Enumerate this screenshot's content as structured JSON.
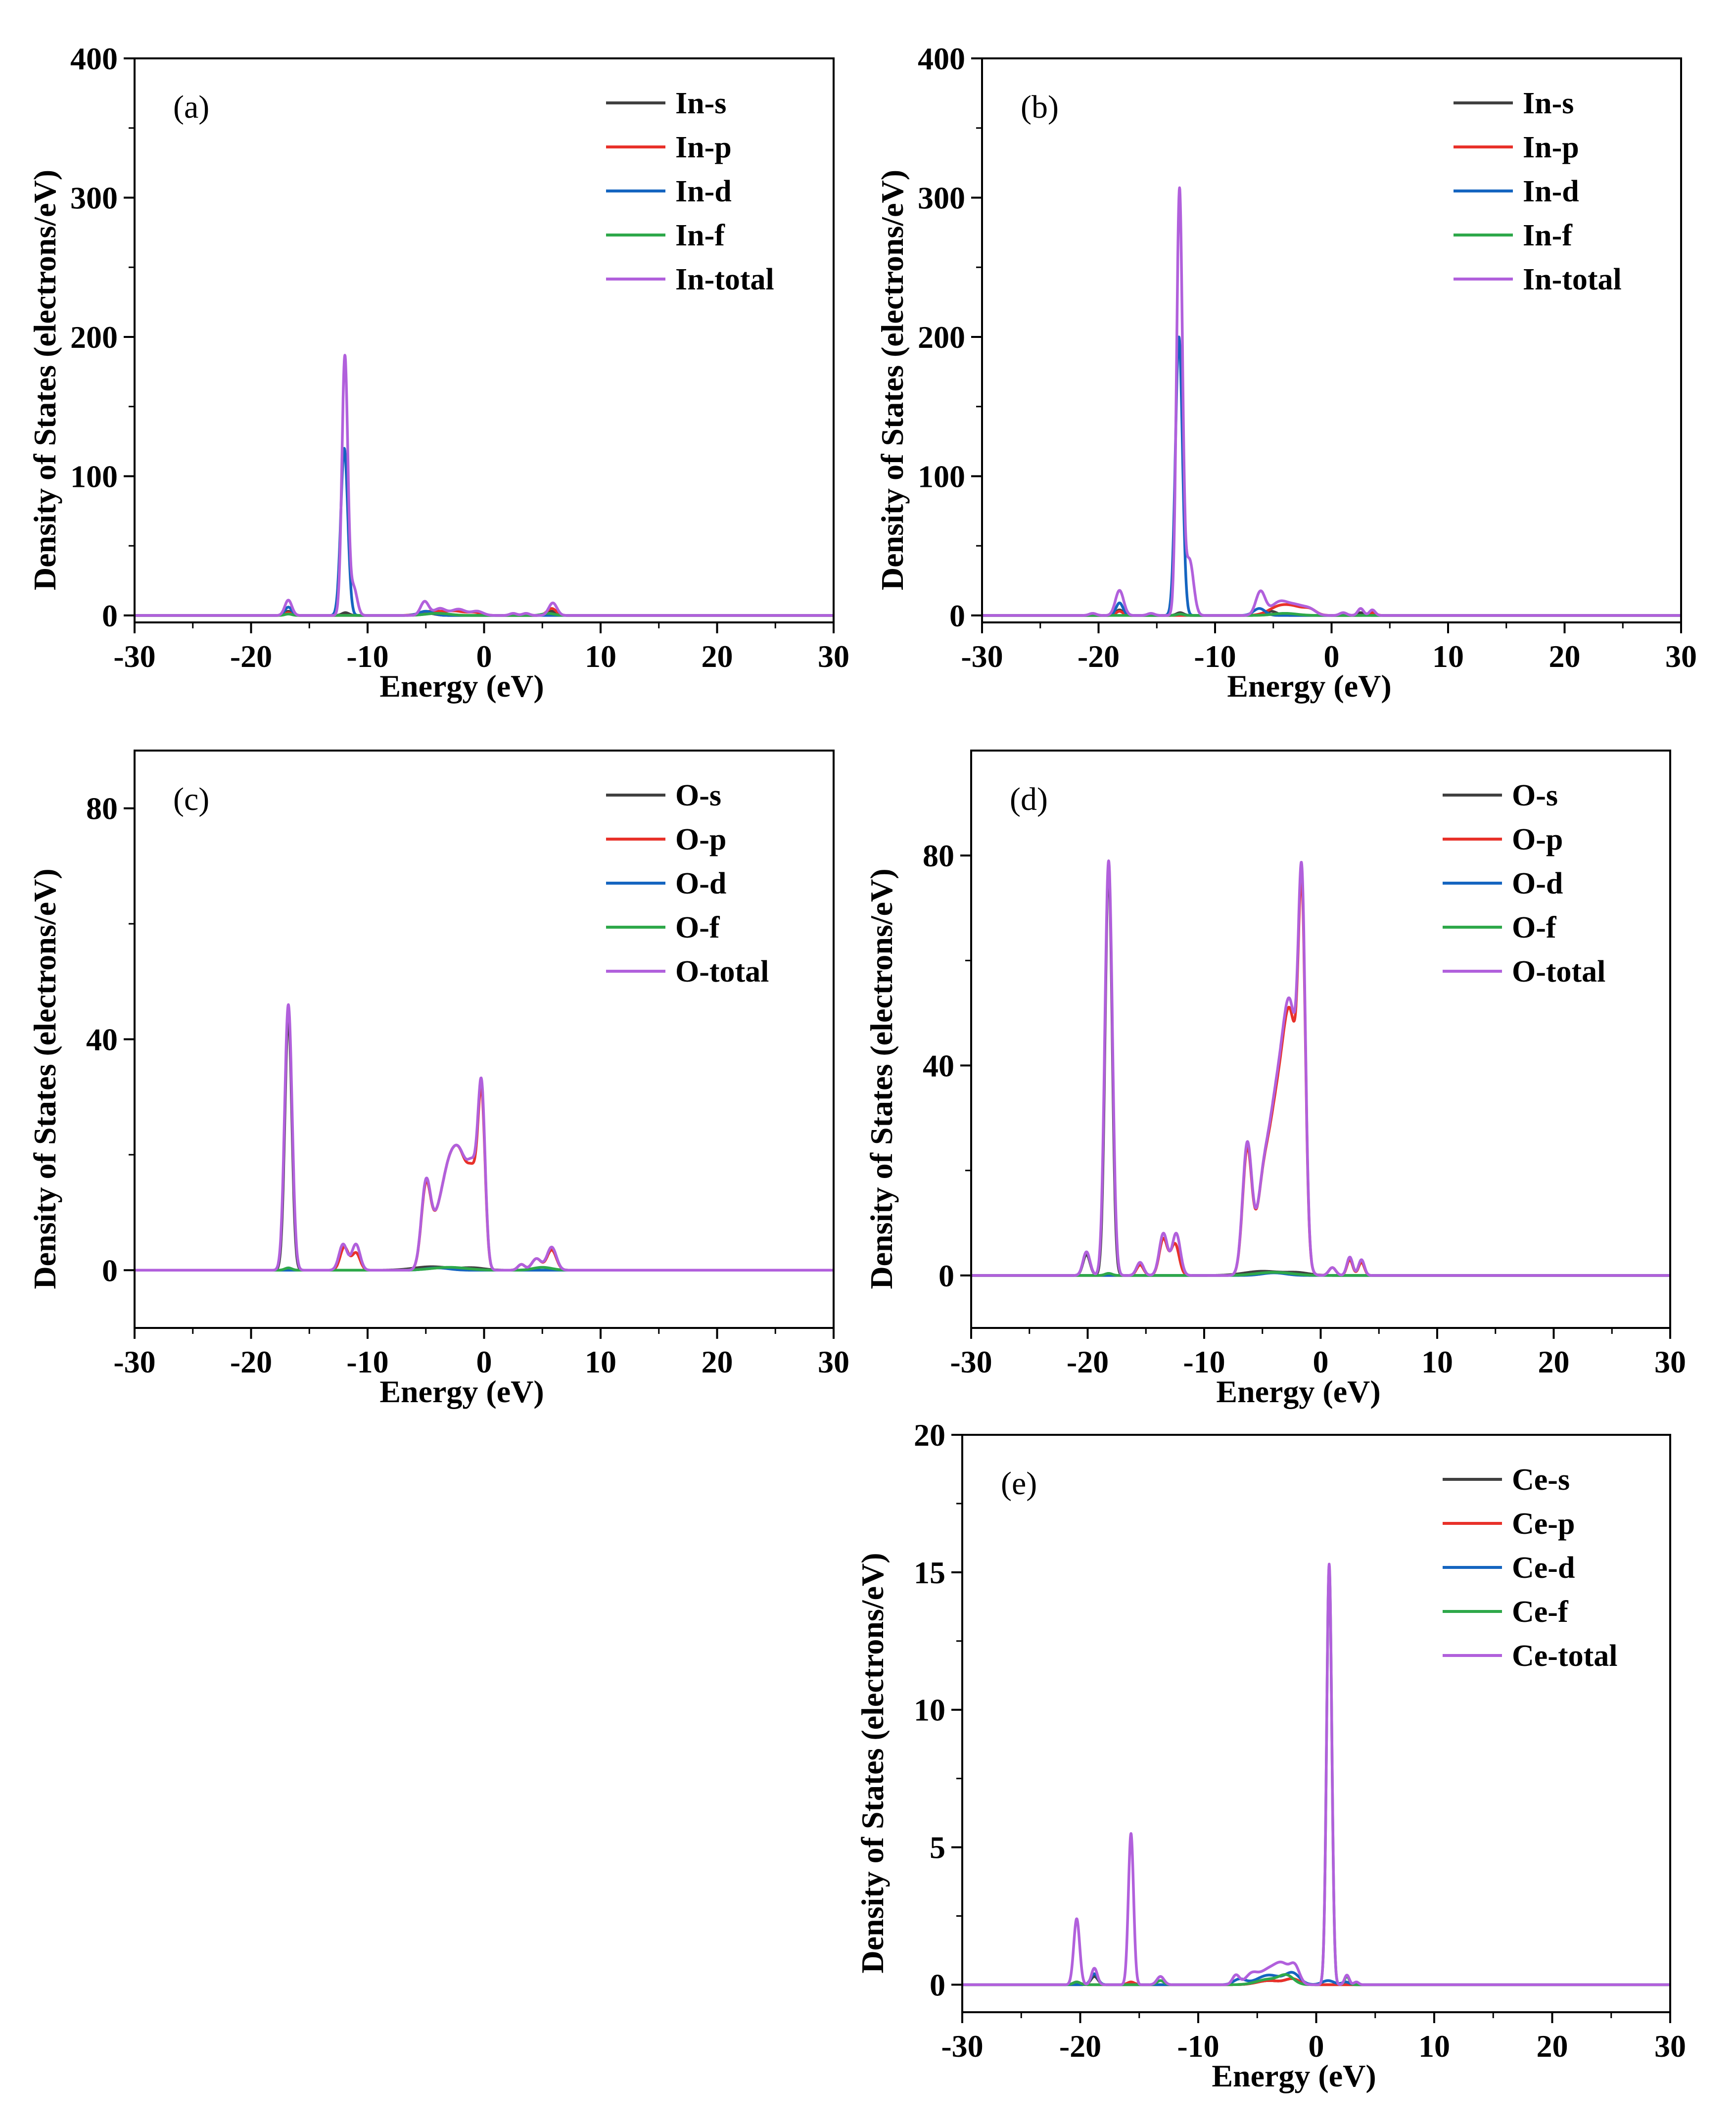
{
  "colors": {
    "s": "#404040",
    "p": "#e8312a",
    "d": "#1565c0",
    "f": "#2ea84a",
    "total": "#b160dc"
  },
  "chart_data": [
    {
      "id": "a",
      "type": "line",
      "panel_label": "(a)",
      "xlabel": "Energy (eV)",
      "ylabel": "Density of States (electrons/eV)",
      "xlim": [
        -30,
        30
      ],
      "ylim": [
        -5,
        400
      ],
      "xticks": [
        -30,
        -20,
        -10,
        0,
        10,
        20,
        30
      ],
      "yticks": [
        0,
        100,
        200,
        300,
        400
      ],
      "series": [
        {
          "name": "In-s",
          "key": "s",
          "peaks": [
            [
              -16.8,
              3,
              0.3
            ],
            [
              -11.9,
              2,
              0.3
            ],
            [
              -4.8,
              1.5,
              0.6
            ],
            [
              5.8,
              3,
              0.4
            ]
          ]
        },
        {
          "name": "In-p",
          "key": "p",
          "peaks": [
            [
              -16.8,
              2,
              0.3
            ],
            [
              -4.5,
              3,
              0.9
            ],
            [
              -2.5,
              3,
              0.8
            ],
            [
              -0.8,
              2,
              0.6
            ],
            [
              5.8,
              5,
              0.4
            ]
          ]
        },
        {
          "name": "In-d",
          "key": "d",
          "peaks": [
            [
              -16.8,
              6,
              0.3
            ],
            [
              -12.0,
              120,
              0.3
            ],
            [
              -5,
              3,
              0.6
            ]
          ]
        },
        {
          "name": "In-f",
          "key": "f",
          "peaks": [
            [
              -16.8,
              1,
              0.3
            ],
            [
              -4,
              1.5,
              1.0
            ],
            [
              5.5,
              1.5,
              0.5
            ]
          ]
        },
        {
          "name": "In-total",
          "key": "total",
          "peaks": [
            [
              -16.8,
              11,
              0.3
            ],
            [
              -11.95,
              186,
              0.25
            ],
            [
              -11.2,
              20,
              0.3
            ],
            [
              -5.1,
              10,
              0.35
            ],
            [
              -3.8,
              5,
              0.5
            ],
            [
              -2.2,
              4.5,
              0.6
            ],
            [
              -0.6,
              3,
              0.5
            ],
            [
              2.5,
              1.5,
              0.3
            ],
            [
              3.6,
              1.5,
              0.3
            ],
            [
              5.9,
              9,
              0.35
            ]
          ]
        }
      ]
    },
    {
      "id": "b",
      "type": "line",
      "panel_label": "(b)",
      "xlabel": "Energy (eV)",
      "ylabel": "Density of States (electrons/eV)",
      "xlim": [
        -30,
        30
      ],
      "ylim": [
        -5,
        400
      ],
      "xticks": [
        -30,
        -20,
        -10,
        0,
        10,
        20,
        30
      ],
      "yticks": [
        0,
        100,
        200,
        300,
        400
      ],
      "series": [
        {
          "name": "In-s",
          "key": "s",
          "peaks": [
            [
              -18.2,
              4,
              0.3
            ],
            [
              -13.0,
              2,
              0.3
            ],
            [
              -5.2,
              3,
              0.5
            ],
            [
              2.5,
              2,
              0.3
            ]
          ]
        },
        {
          "name": "In-p",
          "key": "p",
          "peaks": [
            [
              -18.2,
              3,
              0.3
            ],
            [
              -4.5,
              6,
              0.9
            ],
            [
              -3,
              5,
              0.9
            ],
            [
              -1.8,
              3,
              0.5
            ],
            [
              3.5,
              2,
              0.3
            ]
          ]
        },
        {
          "name": "In-d",
          "key": "d",
          "peaks": [
            [
              -18.2,
              9,
              0.3
            ],
            [
              -13.1,
              200,
              0.3
            ],
            [
              -6.2,
              5,
              0.5
            ]
          ]
        },
        {
          "name": "In-f",
          "key": "f",
          "peaks": [
            [
              -13,
              1,
              0.3
            ],
            [
              -4,
              1.5,
              1.0
            ]
          ]
        },
        {
          "name": "In-total",
          "key": "total",
          "peaks": [
            [
              -18.2,
              18,
              0.35
            ],
            [
              -20.5,
              1.5,
              0.3
            ],
            [
              -15.5,
              1.5,
              0.3
            ],
            [
              -13.05,
              305,
              0.25
            ],
            [
              -12.2,
              40,
              0.35
            ],
            [
              -6.1,
              17,
              0.4
            ],
            [
              -4.5,
              9,
              0.7
            ],
            [
              -3.0,
              7,
              0.8
            ],
            [
              -1.8,
              3,
              0.5
            ],
            [
              1.0,
              2,
              0.3
            ],
            [
              2.5,
              5,
              0.25
            ],
            [
              3.5,
              4,
              0.25
            ]
          ]
        }
      ]
    },
    {
      "id": "c",
      "type": "line",
      "panel_label": "(c)",
      "xlabel": "Energy (eV)",
      "ylabel": "Density of States (electrons/eV)",
      "xlim": [
        -30,
        30
      ],
      "ylim": [
        -10,
        90
      ],
      "xticks": [
        -30,
        -20,
        -10,
        0,
        10,
        20,
        30
      ],
      "yticks": [
        0,
        40,
        80
      ],
      "series": [
        {
          "name": "O-s",
          "key": "s",
          "peaks": [
            [
              -16.8,
              44,
              0.3
            ],
            [
              -4.5,
              0.6,
              1.5
            ],
            [
              -1,
              0.4,
              1.0
            ]
          ]
        },
        {
          "name": "O-p",
          "key": "p",
          "peaks": [
            [
              -12.0,
              4,
              0.35
            ],
            [
              -11.0,
              3,
              0.35
            ],
            [
              -5,
              13.5,
              0.4
            ],
            [
              -4,
              7,
              0.6
            ],
            [
              -3,
              14,
              0.6
            ],
            [
              -2,
              16,
              0.6
            ],
            [
              -0.9,
              14,
              0.5
            ],
            [
              -0.2,
              26,
              0.3
            ],
            [
              3.2,
              1,
              0.3
            ],
            [
              4.5,
              2,
              0.4
            ],
            [
              5.8,
              3.5,
              0.4
            ]
          ]
        },
        {
          "name": "O-d",
          "key": "d",
          "peaks": [
            [
              -4,
              0.4,
              1.0
            ]
          ]
        },
        {
          "name": "O-f",
          "key": "f",
          "peaks": [
            [
              -16.8,
              0.4,
              0.3
            ],
            [
              -3,
              0.5,
              1.5
            ],
            [
              5,
              0.5,
              0.8
            ]
          ]
        },
        {
          "name": "O-total",
          "key": "total",
          "peaks": [
            [
              -16.8,
              46,
              0.32
            ],
            [
              -12.1,
              4.5,
              0.35
            ],
            [
              -11.0,
              4.5,
              0.35
            ],
            [
              -5,
              14,
              0.4
            ],
            [
              -4,
              7,
              0.6
            ],
            [
              -3,
              14,
              0.6
            ],
            [
              -2,
              16,
              0.6
            ],
            [
              -0.9,
              15,
              0.5
            ],
            [
              -0.2,
              27,
              0.3
            ],
            [
              3.2,
              1,
              0.3
            ],
            [
              4.5,
              2,
              0.4
            ],
            [
              5.8,
              4,
              0.4
            ]
          ]
        }
      ]
    },
    {
      "id": "d",
      "type": "line",
      "panel_label": "(d)",
      "xlabel": "Energy (eV)",
      "ylabel": "Density of States (electrons/eV)",
      "xlim": [
        -30,
        30
      ],
      "ylim": [
        -10,
        100
      ],
      "xticks": [
        -30,
        -20,
        -10,
        0,
        10,
        20,
        30
      ],
      "yticks": [
        0,
        40,
        80
      ],
      "series": [
        {
          "name": "O-s",
          "key": "s",
          "peaks": [
            [
              -18.2,
              78,
              0.3
            ],
            [
              -20.1,
              4,
              0.3
            ],
            [
              -5,
              0.8,
              1.5
            ],
            [
              -2,
              0.5,
              1.0
            ]
          ]
        },
        {
          "name": "O-p",
          "key": "p",
          "peaks": [
            [
              -13.5,
              7,
              0.35
            ],
            [
              -12.5,
              6,
              0.35
            ],
            [
              -15.5,
              2,
              0.3
            ],
            [
              -6.3,
              24,
              0.4
            ],
            [
              -5.0,
              14,
              0.5
            ],
            [
              -4.0,
              24,
              0.6
            ],
            [
              -3.0,
              28,
              0.6
            ],
            [
              -2.3,
              30,
              0.6
            ],
            [
              -1.6,
              58,
              0.3
            ],
            [
              1.0,
              1.5,
              0.3
            ],
            [
              2.5,
              3,
              0.25
            ],
            [
              3.5,
              2.5,
              0.25
            ]
          ]
        },
        {
          "name": "O-d",
          "key": "d",
          "peaks": [
            [
              -4,
              0.5,
              1.0
            ]
          ]
        },
        {
          "name": "O-f",
          "key": "f",
          "peaks": [
            [
              -18.2,
              0.4,
              0.3
            ],
            [
              -4,
              0.6,
              1.5
            ]
          ]
        },
        {
          "name": "O-total",
          "key": "total",
          "peaks": [
            [
              -20.1,
              4.5,
              0.3
            ],
            [
              -18.2,
              79,
              0.32
            ],
            [
              -15.5,
              2.5,
              0.3
            ],
            [
              -13.5,
              8,
              0.35
            ],
            [
              -12.4,
              8,
              0.35
            ],
            [
              -6.3,
              25,
              0.4
            ],
            [
              -5.0,
              14,
              0.5
            ],
            [
              -4.0,
              25,
              0.6
            ],
            [
              -3.0,
              29,
              0.6
            ],
            [
              -2.3,
              31,
              0.6
            ],
            [
              -1.6,
              60,
              0.3
            ],
            [
              1.0,
              1.5,
              0.3
            ],
            [
              2.5,
              3.5,
              0.25
            ],
            [
              3.5,
              3,
              0.25
            ]
          ]
        }
      ]
    },
    {
      "id": "e",
      "type": "line",
      "panel_label": "(e)",
      "xlabel": "Energy (eV)",
      "ylabel": "Density of States (electrons/eV)",
      "xlim": [
        -30,
        30
      ],
      "ylim": [
        -1,
        20
      ],
      "xticks": [
        -30,
        -20,
        -10,
        0,
        10,
        20,
        30
      ],
      "yticks": [
        0,
        5,
        10,
        15,
        20
      ],
      "series": [
        {
          "name": "Ce-s",
          "key": "s",
          "peaks": [
            [
              -18.8,
              0.3,
              0.3
            ],
            [
              -4,
              0.15,
              1.0
            ],
            [
              -2,
              0.2,
              0.6
            ]
          ]
        },
        {
          "name": "Ce-p",
          "key": "p",
          "peaks": [
            [
              -20.3,
              0.1,
              0.3
            ],
            [
              -15.7,
              0.1,
              0.3
            ],
            [
              -4,
              0.15,
              1.0
            ],
            [
              -2,
              0.2,
              0.6
            ]
          ]
        },
        {
          "name": "Ce-d",
          "key": "d",
          "peaks": [
            [
              -18.8,
              0.4,
              0.3
            ],
            [
              -6.5,
              0.2,
              0.5
            ],
            [
              -4,
              0.35,
              1.0
            ],
            [
              -2,
              0.4,
              0.6
            ],
            [
              1.0,
              0.15,
              0.5
            ],
            [
              2.5,
              0.1,
              0.3
            ]
          ]
        },
        {
          "name": "Ce-f",
          "key": "f",
          "peaks": [
            [
              -20.3,
              0.1,
              0.3
            ],
            [
              -13.2,
              0.15,
              0.3
            ],
            [
              -4,
              0.2,
              1.0
            ],
            [
              -2.5,
              0.3,
              0.6
            ],
            [
              1.1,
              15.2,
              0.22
            ],
            [
              2.6,
              0.3,
              0.2
            ]
          ]
        },
        {
          "name": "Ce-total",
          "key": "total",
          "peaks": [
            [
              -20.3,
              2.4,
              0.25
            ],
            [
              -18.8,
              0.6,
              0.25
            ],
            [
              -15.7,
              5.5,
              0.22
            ],
            [
              -13.2,
              0.3,
              0.3
            ],
            [
              -6.8,
              0.35,
              0.3
            ],
            [
              -5.5,
              0.35,
              0.5
            ],
            [
              -4,
              0.55,
              0.8
            ],
            [
              -2.8,
              0.6,
              0.6
            ],
            [
              -1.8,
              0.6,
              0.4
            ],
            [
              1.1,
              15.3,
              0.22
            ],
            [
              2.6,
              0.35,
              0.2
            ],
            [
              3.4,
              0.1,
              0.2
            ]
          ]
        }
      ]
    }
  ]
}
